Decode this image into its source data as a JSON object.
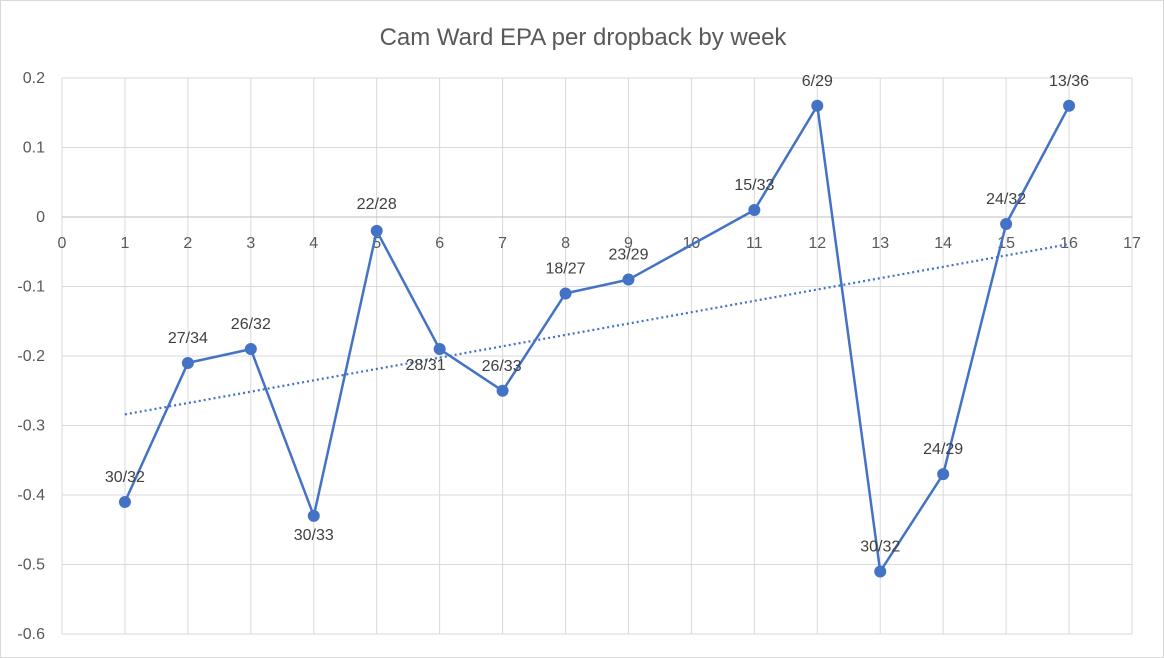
{
  "chart_data": {
    "type": "line",
    "title": "Cam Ward EPA per dropback by week",
    "xlabel": "",
    "ylabel": "",
    "xlim": [
      0,
      17
    ],
    "ylim": [
      -0.6,
      0.2
    ],
    "x_ticks": [
      0,
      1,
      2,
      3,
      4,
      5,
      6,
      7,
      8,
      9,
      10,
      11,
      12,
      13,
      14,
      15,
      16,
      17
    ],
    "y_ticks": [
      0.2,
      0.1,
      0,
      -0.1,
      -0.2,
      -0.3,
      -0.4,
      -0.5,
      -0.6
    ],
    "grid": {
      "vertical": true,
      "horizontal": true
    },
    "legend": "none",
    "series": [
      {
        "name": "EPA per dropback",
        "x": [
          1,
          2,
          3,
          4,
          5,
          6,
          7,
          8,
          9,
          11,
          12,
          13,
          14,
          15,
          16
        ],
        "values": [
          -0.41,
          -0.21,
          -0.19,
          -0.43,
          -0.02,
          -0.19,
          -0.25,
          -0.11,
          -0.09,
          0.01,
          0.16,
          -0.51,
          -0.37,
          -0.01,
          0.16
        ],
        "labels": [
          "30/32",
          "27/34",
          "26/32",
          "30/33",
          "22/28",
          "28/31",
          "26/33",
          "18/27",
          "23/29",
          "15/33",
          "6/29",
          "30/32",
          "24/29",
          "24/32",
          "13/36"
        ],
        "color": "#4472c4"
      }
    ],
    "trendline": {
      "type": "linear",
      "style": "dotted",
      "color": "#4472c4",
      "x_range": [
        1,
        16
      ],
      "y_start": -0.284,
      "y_end": -0.039
    }
  }
}
